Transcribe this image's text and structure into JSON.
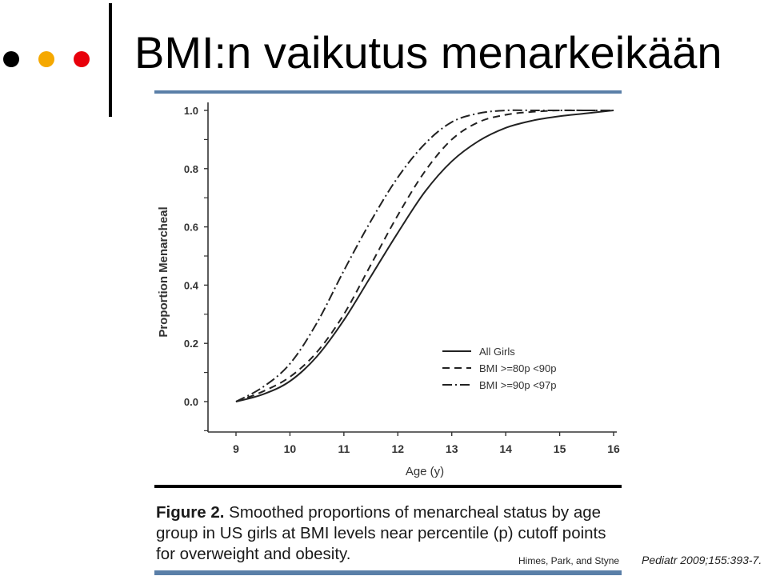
{
  "slide": {
    "title": "BMI:n vaikutus menarkeikään",
    "dot_colors": [
      "#000000",
      "#f5a800",
      "#e8000b"
    ],
    "rule_color": "#5a7fa8"
  },
  "figure": {
    "caption_label": "Figure 2.",
    "caption_text": "Smoothed proportions of menarcheal status by age group in US girls at BMI levels near percentile (p) cutoff points for overweight and obesity.",
    "authors": "Himes, Park, and Styne",
    "journal": "Pediatr 2009;155:393-7."
  },
  "chart_data": {
    "type": "line",
    "xlabel": "Age (y)",
    "ylabel": "Proportion Menarcheal",
    "xlim": [
      9,
      16
    ],
    "ylim": [
      0.0,
      1.0
    ],
    "x_ticks": [
      "9",
      "10",
      "11",
      "12",
      "13",
      "14",
      "15",
      "16"
    ],
    "y_ticks": [
      "0.0",
      "0.2",
      "0.4",
      "0.6",
      "0.8",
      "1.0"
    ],
    "legend_position": "lower-right",
    "series": [
      {
        "name": "All Girls",
        "line_style": "solid",
        "x": [
          9,
          9.5,
          10,
          10.5,
          11,
          11.5,
          12,
          12.5,
          13,
          13.5,
          14,
          14.5,
          15,
          15.5,
          16
        ],
        "y": [
          0.0,
          0.025,
          0.07,
          0.155,
          0.28,
          0.43,
          0.58,
          0.72,
          0.825,
          0.895,
          0.94,
          0.965,
          0.98,
          0.99,
          1.0
        ]
      },
      {
        "name": "BMI >=80p <90p",
        "line_style": "dashed",
        "x": [
          9,
          9.5,
          10,
          10.5,
          11,
          11.5,
          12,
          12.5,
          13,
          13.5,
          14,
          14.5,
          15,
          15.5,
          16
        ],
        "y": [
          0.0,
          0.035,
          0.085,
          0.17,
          0.3,
          0.47,
          0.64,
          0.79,
          0.9,
          0.96,
          0.985,
          0.995,
          1.0,
          1.0,
          1.0
        ]
      },
      {
        "name": "BMI >=90p <97p",
        "line_style": "dashdot",
        "x": [
          9,
          9.5,
          10,
          10.5,
          11,
          11.5,
          12,
          12.5,
          13,
          13.5,
          14,
          14.5,
          15,
          15.5,
          16
        ],
        "y": [
          0.0,
          0.05,
          0.13,
          0.27,
          0.45,
          0.62,
          0.77,
          0.885,
          0.96,
          0.99,
          1.0,
          1.0,
          1.0,
          1.0,
          1.0
        ]
      }
    ]
  }
}
